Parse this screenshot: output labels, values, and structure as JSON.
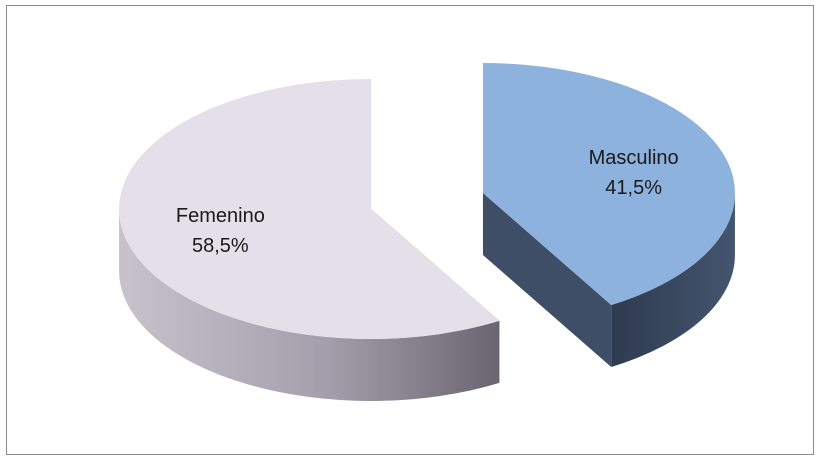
{
  "chart_data": {
    "type": "pie",
    "style": "3d-exploded",
    "title": "",
    "legend": "none",
    "slices": [
      {
        "label": "Masculino",
        "value": 41.5,
        "display": "41,5%",
        "color": "#8eb2de",
        "side_color": "#3e4e66"
      },
      {
        "label": "Femenino",
        "value": 58.5,
        "display": "58,5%",
        "color": "#e3e0ea",
        "side_color": "#8a8593"
      }
    ]
  }
}
